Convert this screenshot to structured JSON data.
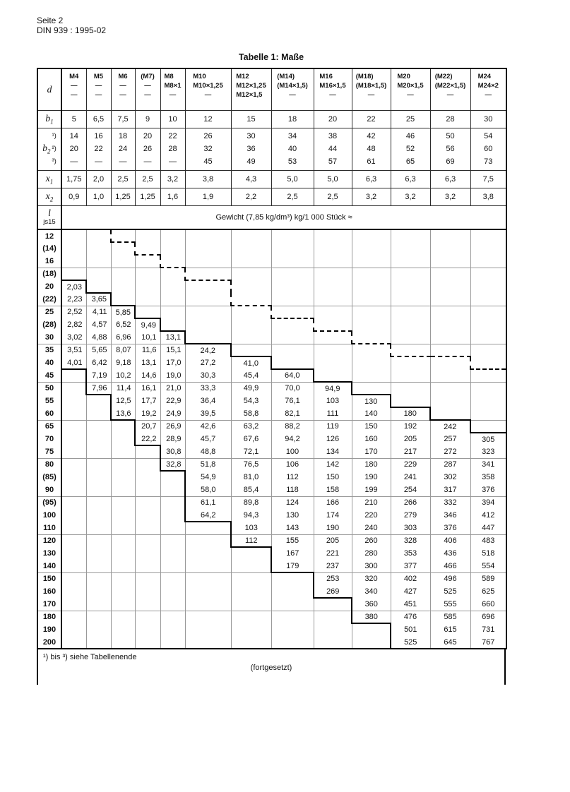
{
  "page_header": {
    "line1": "Seite 2",
    "line2": "DIN 939 : 1995-02"
  },
  "table": {
    "title": "Tabelle 1: Maße",
    "corner_label": "d",
    "columns": [
      [
        "M4",
        "—",
        "—"
      ],
      [
        "M5",
        "—",
        "—"
      ],
      [
        "M6",
        "—",
        "—"
      ],
      [
        "(M7)",
        "—",
        "—"
      ],
      [
        "M8",
        "M8×1",
        "—"
      ],
      [
        "M10",
        "M10×1,25",
        "—"
      ],
      [
        "M12",
        "M12×1,25",
        "M12×1,5"
      ],
      [
        "(M14)",
        "(M14×1,5)",
        "—"
      ],
      [
        "M16",
        "M16×1,5",
        "—"
      ],
      [
        "(M18)",
        "(M18×1,5)",
        "—"
      ],
      [
        "M20",
        "M20×1,5",
        "—"
      ],
      [
        "(M22)",
        "(M22×1,5)",
        "—"
      ],
      [
        "M24",
        "M24×2",
        "—"
      ]
    ],
    "rows_upper": {
      "b1": {
        "base": "b",
        "sub": "1",
        "values": [
          "5",
          "6,5",
          "7,5",
          "9",
          "10",
          "12",
          "15",
          "18",
          "20",
          "22",
          "25",
          "28",
          "30"
        ]
      },
      "b2": {
        "base": "b",
        "sub": "2",
        "marks": [
          "¹)",
          "²)",
          "³)"
        ],
        "lines": [
          [
            "14",
            "16",
            "18",
            "20",
            "22",
            "26",
            "30",
            "34",
            "38",
            "42",
            "46",
            "50",
            "54"
          ],
          [
            "20",
            "22",
            "24",
            "26",
            "28",
            "32",
            "36",
            "40",
            "44",
            "48",
            "52",
            "56",
            "60"
          ],
          [
            "—",
            "—",
            "—",
            "—",
            "—",
            "45",
            "49",
            "53",
            "57",
            "61",
            "65",
            "69",
            "73"
          ]
        ]
      },
      "x1": {
        "base": "x",
        "sub": "1",
        "values": [
          "1,75",
          "2,0",
          "2,5",
          "2,5",
          "3,2",
          "3,8",
          "4,3",
          "5,0",
          "5,0",
          "6,3",
          "6,3",
          "6,3",
          "7,5"
        ]
      },
      "x2": {
        "base": "x",
        "sub": "2",
        "values": [
          "0,9",
          "1,0",
          "1,25",
          "1,25",
          "1,6",
          "1,9",
          "2,2",
          "2,5",
          "2,5",
          "3,2",
          "3,2",
          "3,2",
          "3,8"
        ]
      }
    },
    "weight_row": {
      "l": "l",
      "tol": "js15",
      "text": "Gewicht (7,85 kg/dm³) kg/1 000 Stück ≈"
    },
    "groups": [
      {
        "lengths": [
          "12",
          "(14)",
          "16"
        ],
        "cols": [
          [
            "",
            "",
            ""
          ],
          [
            "",
            "",
            ""
          ],
          [
            "",
            "",
            ""
          ],
          [
            "",
            "",
            ""
          ],
          [
            "",
            "",
            ""
          ],
          [
            "",
            "",
            ""
          ],
          [
            "",
            "",
            ""
          ],
          [
            "",
            "",
            ""
          ],
          [
            "",
            "",
            ""
          ],
          [
            "",
            "",
            ""
          ],
          [
            "",
            "",
            ""
          ],
          [
            "",
            "",
            ""
          ],
          [
            "",
            "",
            ""
          ]
        ]
      },
      {
        "lengths": [
          "(18)",
          "20",
          "(22)"
        ],
        "cols": [
          [
            "",
            "2,03",
            "2,23"
          ],
          [
            "",
            "",
            "3,65"
          ],
          [
            "",
            "",
            ""
          ],
          [
            "",
            "",
            ""
          ],
          [
            "",
            "",
            ""
          ],
          [
            "",
            "",
            ""
          ],
          [
            "",
            "",
            ""
          ],
          [
            "",
            "",
            ""
          ],
          [
            "",
            "",
            ""
          ],
          [
            "",
            "",
            ""
          ],
          [
            "",
            "",
            ""
          ],
          [
            "",
            "",
            ""
          ],
          [
            "",
            "",
            ""
          ]
        ]
      },
      {
        "lengths": [
          "25",
          "(28)",
          "30"
        ],
        "cols": [
          [
            "2,52",
            "2,82",
            "3,02"
          ],
          [
            "4,11",
            "4,57",
            "4,88"
          ],
          [
            "5,85",
            "6,52",
            "6,96"
          ],
          [
            "",
            "9,49",
            "10,1"
          ],
          [
            "",
            "",
            "13,1"
          ],
          [
            "",
            "",
            ""
          ],
          [
            "",
            "",
            ""
          ],
          [
            "",
            "",
            ""
          ],
          [
            "",
            "",
            ""
          ],
          [
            "",
            "",
            ""
          ],
          [
            "",
            "",
            ""
          ],
          [
            "",
            "",
            ""
          ],
          [
            "",
            "",
            ""
          ]
        ]
      },
      {
        "lengths": [
          "35",
          "40",
          "45"
        ],
        "cols": [
          [
            "3,51",
            "4,01",
            ""
          ],
          [
            "5,65",
            "6,42",
            "7,19"
          ],
          [
            "8,07",
            "9,18",
            "10,2"
          ],
          [
            "11,6",
            "13,1",
            "14,6"
          ],
          [
            "15,1",
            "17,0",
            "19,0"
          ],
          [
            "24,2",
            "27,2",
            "30,3"
          ],
          [
            "",
            "41,0",
            "45,4"
          ],
          [
            "",
            "",
            "64,0"
          ],
          [
            "",
            "",
            ""
          ],
          [
            "",
            "",
            ""
          ],
          [
            "",
            "",
            ""
          ],
          [
            "",
            "",
            ""
          ],
          [
            "",
            "",
            ""
          ]
        ]
      },
      {
        "lengths": [
          "50",
          "55",
          "60"
        ],
        "cols": [
          [
            "",
            "",
            ""
          ],
          [
            "7,96",
            "",
            ""
          ],
          [
            "11,4",
            "12,5",
            "13,6"
          ],
          [
            "16,1",
            "17,7",
            "19,2"
          ],
          [
            "21,0",
            "22,9",
            "24,9"
          ],
          [
            "33,3",
            "36,4",
            "39,5"
          ],
          [
            "49,9",
            "54,3",
            "58,8"
          ],
          [
            "70,0",
            "76,1",
            "82,1"
          ],
          [
            "94,9",
            "103",
            "111"
          ],
          [
            "",
            "130",
            "140"
          ],
          [
            "",
            "",
            "180"
          ],
          [
            "",
            "",
            ""
          ],
          [
            "",
            "",
            ""
          ]
        ]
      },
      {
        "lengths": [
          "65",
          "70",
          "75"
        ],
        "cols": [
          [
            "",
            "",
            ""
          ],
          [
            "",
            "",
            ""
          ],
          [
            "",
            "",
            ""
          ],
          [
            "20,7",
            "22,2",
            ""
          ],
          [
            "26,9",
            "28,9",
            "30,8"
          ],
          [
            "42,6",
            "45,7",
            "48,8"
          ],
          [
            "63,2",
            "67,6",
            "72,1"
          ],
          [
            "88,2",
            "94,2",
            "100"
          ],
          [
            "119",
            "126",
            "134"
          ],
          [
            "150",
            "160",
            "170"
          ],
          [
            "192",
            "205",
            "217"
          ],
          [
            "242",
            "257",
            "272"
          ],
          [
            "",
            "305",
            "323"
          ]
        ]
      },
      {
        "lengths": [
          "80",
          "(85)",
          "90"
        ],
        "cols": [
          [
            "",
            "",
            ""
          ],
          [
            "",
            "",
            ""
          ],
          [
            "",
            "",
            ""
          ],
          [
            "",
            "",
            ""
          ],
          [
            "32,8",
            "",
            ""
          ],
          [
            "51,8",
            "54,9",
            "58,0"
          ],
          [
            "76,5",
            "81,0",
            "85,4"
          ],
          [
            "106",
            "112",
            "118"
          ],
          [
            "142",
            "150",
            "158"
          ],
          [
            "180",
            "190",
            "199"
          ],
          [
            "229",
            "241",
            "254"
          ],
          [
            "287",
            "302",
            "317"
          ],
          [
            "341",
            "358",
            "376"
          ]
        ]
      },
      {
        "lengths": [
          "(95)",
          "100",
          "110"
        ],
        "cols": [
          [
            "",
            "",
            ""
          ],
          [
            "",
            "",
            ""
          ],
          [
            "",
            "",
            ""
          ],
          [
            "",
            "",
            ""
          ],
          [
            "",
            "",
            ""
          ],
          [
            "61,1",
            "64,2",
            ""
          ],
          [
            "89,8",
            "94,3",
            "103"
          ],
          [
            "124",
            "130",
            "143"
          ],
          [
            "166",
            "174",
            "190"
          ],
          [
            "210",
            "220",
            "240"
          ],
          [
            "266",
            "279",
            "303"
          ],
          [
            "332",
            "346",
            "376"
          ],
          [
            "394",
            "412",
            "447"
          ]
        ]
      },
      {
        "lengths": [
          "120",
          "130",
          "140"
        ],
        "cols": [
          [
            "",
            "",
            ""
          ],
          [
            "",
            "",
            ""
          ],
          [
            "",
            "",
            ""
          ],
          [
            "",
            "",
            ""
          ],
          [
            "",
            "",
            ""
          ],
          [
            "",
            "",
            ""
          ],
          [
            "112",
            "",
            ""
          ],
          [
            "155",
            "167",
            "179"
          ],
          [
            "205",
            "221",
            "237"
          ],
          [
            "260",
            "280",
            "300"
          ],
          [
            "328",
            "353",
            "377"
          ],
          [
            "406",
            "436",
            "466"
          ],
          [
            "483",
            "518",
            "554"
          ]
        ]
      },
      {
        "lengths": [
          "150",
          "160",
          "170"
        ],
        "cols": [
          [
            "",
            "",
            ""
          ],
          [
            "",
            "",
            ""
          ],
          [
            "",
            "",
            ""
          ],
          [
            "",
            "",
            ""
          ],
          [
            "",
            "",
            ""
          ],
          [
            "",
            "",
            ""
          ],
          [
            "",
            "",
            ""
          ],
          [
            "",
            "",
            ""
          ],
          [
            "253",
            "269",
            ""
          ],
          [
            "320",
            "340",
            "360"
          ],
          [
            "402",
            "427",
            "451"
          ],
          [
            "496",
            "525",
            "555"
          ],
          [
            "589",
            "625",
            "660"
          ]
        ]
      },
      {
        "lengths": [
          "180",
          "190",
          "200"
        ],
        "cols": [
          [
            "",
            "",
            ""
          ],
          [
            "",
            "",
            ""
          ],
          [
            "",
            "",
            ""
          ],
          [
            "",
            "",
            ""
          ],
          [
            "",
            "",
            ""
          ],
          [
            "",
            "",
            ""
          ],
          [
            "",
            "",
            ""
          ],
          [
            "",
            "",
            ""
          ],
          [
            "",
            "",
            ""
          ],
          [
            "380",
            "",
            ""
          ],
          [
            "476",
            "501",
            "525"
          ],
          [
            "585",
            "615",
            "645"
          ],
          [
            "696",
            "731",
            "767"
          ]
        ]
      }
    ],
    "footnote": "¹) bis ³) siehe Tabellenende",
    "continued": "(fortgesetzt)"
  }
}
